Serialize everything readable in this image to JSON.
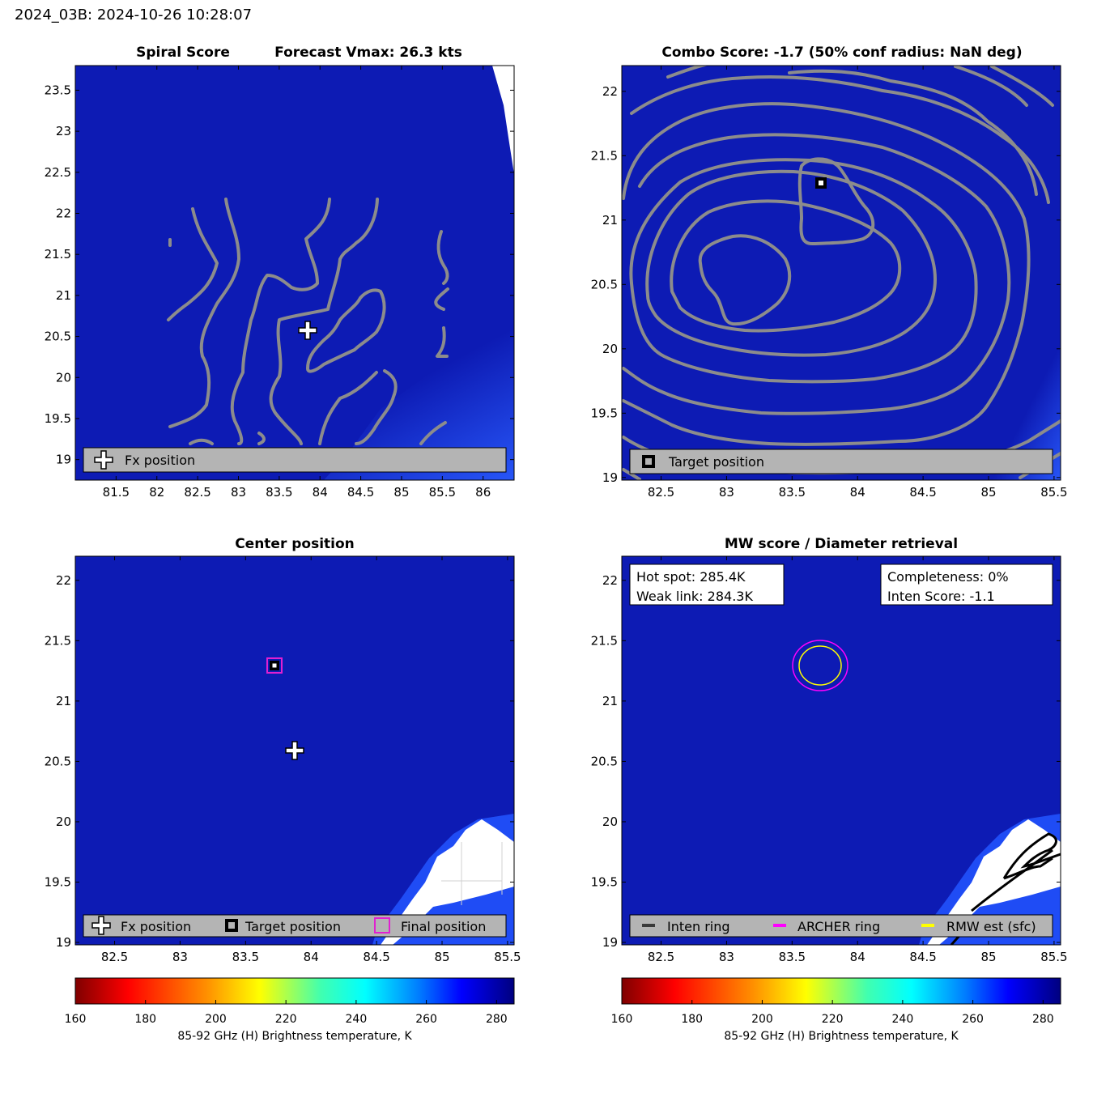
{
  "figure_title": "2024_03B: 2024-10-26 10:28:07",
  "colors": {
    "field": "#0d1bb4",
    "field_light": "#1b3fe6",
    "contour": "#8c8c8c",
    "legend_bg": "#b4b4b4",
    "archer": "#ff00ff",
    "rmw": "#ffff00",
    "final": "#e020d0"
  },
  "panels": {
    "spiral": {
      "title_left": "Spiral Score",
      "title_right": "Forecast Vmax: 26.3 kts",
      "legend": {
        "fx": "Fx position"
      }
    },
    "combo": {
      "title": "Combo Score: -1.7  (50% conf radius: NaN deg)",
      "legend": {
        "target": "Target position"
      }
    },
    "center": {
      "title": "Center position",
      "legend": {
        "fx": "Fx position",
        "target": "Target position",
        "final": "Final position"
      }
    },
    "mw": {
      "title": "MW score / Diameter retrieval",
      "info_left": [
        "Hot spot: 285.4K",
        "Weak link: 284.3K"
      ],
      "info_right": [
        "Completeness: 0%",
        "Inten Score: -1.1"
      ],
      "legend": {
        "inten": "Inten ring",
        "archer": "ARCHER ring",
        "rmw": "RMW est (sfc)"
      }
    }
  },
  "colorbar": {
    "label": "85-92 GHz (H) Brightness temperature, K",
    "ticks": [
      "160",
      "180",
      "200",
      "220",
      "240",
      "260",
      "280"
    ],
    "range": [
      160,
      285
    ],
    "colormap": "jet-reversed"
  },
  "chart_data": [
    {
      "type": "heatmap",
      "title": "Spiral Score",
      "subtitle": "Forecast Vmax: 26.3 kts",
      "xlim": [
        81.0,
        86.38
      ],
      "ylim": [
        18.75,
        23.8
      ],
      "xticks": [
        "81.5",
        "82",
        "82.5",
        "83",
        "83.5",
        "84",
        "84.5",
        "85",
        "85.5",
        "86"
      ],
      "yticks": [
        "19",
        "19.5",
        "20",
        "20.5",
        "21",
        "21.5",
        "22",
        "22.5",
        "23",
        "23.5"
      ],
      "fx_position": {
        "lon": 83.85,
        "lat": 20.58
      },
      "legend": [
        "Fx position"
      ]
    },
    {
      "type": "heatmap",
      "title": "Combo Score: -1.7  (50% conf radius: NaN deg)",
      "xlim": [
        82.2,
        85.55
      ],
      "ylim": [
        18.98,
        22.2
      ],
      "xticks": [
        "82.5",
        "83",
        "83.5",
        "84",
        "84.5",
        "85",
        "85.5"
      ],
      "yticks": [
        "19",
        "19.5",
        "20",
        "20.5",
        "21",
        "21.5",
        "22"
      ],
      "target_position": {
        "lon": 83.7,
        "lat": 21.27
      },
      "legend": [
        "Target position"
      ]
    },
    {
      "type": "heatmap",
      "title": "Center position",
      "xlim": [
        82.2,
        85.55
      ],
      "ylim": [
        18.98,
        22.2
      ],
      "xticks": [
        "82.5",
        "83",
        "83.5",
        "84",
        "84.5",
        "85",
        "85.5"
      ],
      "yticks": [
        "19",
        "19.5",
        "20",
        "20.5",
        "21",
        "21.5",
        "22"
      ],
      "fx_position": {
        "lon": 83.85,
        "lat": 20.58
      },
      "target_position": {
        "lon": 83.7,
        "lat": 21.27
      },
      "final_position": {
        "lon": 83.7,
        "lat": 21.27
      },
      "legend": [
        "Fx position",
        "Target position",
        "Final position"
      ]
    },
    {
      "type": "heatmap",
      "title": "MW score / Diameter retrieval",
      "xlim": [
        82.2,
        85.55
      ],
      "ylim": [
        18.98,
        22.2
      ],
      "xticks": [
        "82.5",
        "83",
        "83.5",
        "84",
        "84.5",
        "85",
        "85.5"
      ],
      "yticks": [
        "19",
        "19.5",
        "20",
        "20.5",
        "21",
        "21.5",
        "22"
      ],
      "archer_ring_center": {
        "lon": 83.7,
        "lat": 21.27
      },
      "hot_spot_K": 285.4,
      "weak_link_K": 284.3,
      "completeness_pct": 0,
      "inten_score": -1.1,
      "legend": [
        "Inten ring",
        "ARCHER ring",
        "RMW est (sfc)"
      ]
    }
  ]
}
